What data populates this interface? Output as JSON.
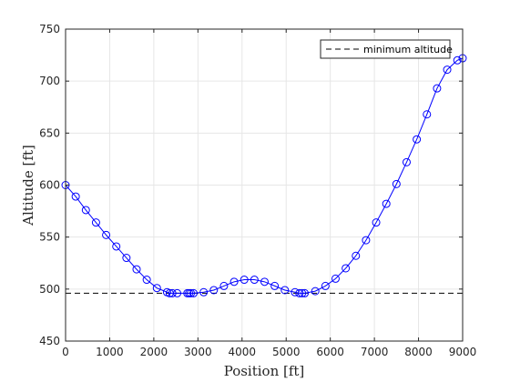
{
  "chart_data": {
    "type": "line",
    "xlabel": "Position [ft]",
    "ylabel": "Altitude [ft]",
    "xlim": [
      0,
      9000
    ],
    "ylim": [
      450,
      750
    ],
    "xticks": [
      0,
      1000,
      2000,
      3000,
      4000,
      5000,
      6000,
      7000,
      8000,
      9000
    ],
    "yticks": [
      450,
      500,
      550,
      600,
      650,
      700,
      750
    ],
    "grid": true,
    "legend_position": "top-right",
    "series": [
      {
        "name": "",
        "style": "solid line with circle markers",
        "color": "#0000ff",
        "x": [
          0,
          230,
          460,
          690,
          920,
          1150,
          1380,
          1610,
          1840,
          2070,
          2300,
          2360,
          2420,
          2530,
          2760,
          2800,
          2840,
          2900,
          3130,
          3360,
          3590,
          3820,
          4050,
          4280,
          4510,
          4740,
          4970,
          5200,
          5300,
          5360,
          5420,
          5660,
          5890,
          6120,
          6350,
          6580,
          6810,
          7040,
          7270,
          7500,
          7730,
          7960,
          8190,
          8420,
          8650,
          8880,
          9000
        ],
        "y": [
          600,
          589,
          576,
          564,
          552,
          541,
          530,
          519,
          509,
          501,
          497,
          496,
          496,
          496,
          496,
          496,
          496,
          496,
          497,
          499,
          503,
          507,
          509,
          509,
          507,
          503,
          499,
          497,
          496,
          496,
          496,
          498,
          503,
          510,
          520,
          532,
          547,
          564,
          582,
          601,
          622,
          644,
          668,
          693,
          711,
          720,
          722
        ]
      },
      {
        "name": "minimum altitude",
        "style": "dashed",
        "color": "#000000",
        "x": [
          0,
          9000
        ],
        "y": [
          496,
          496
        ]
      }
    ]
  },
  "colors": {
    "path": "#0000ff",
    "min_line": "#000000",
    "grid": "#e6e6e6",
    "axis": "#262626"
  }
}
